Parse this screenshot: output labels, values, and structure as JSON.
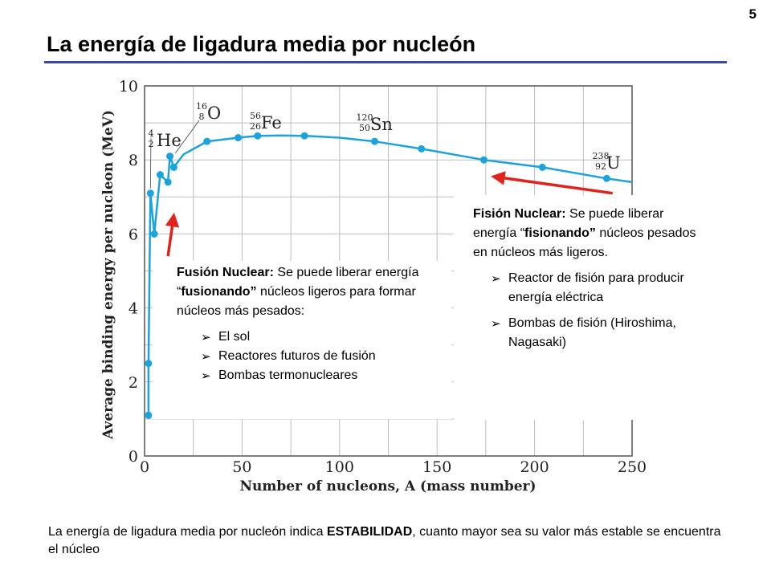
{
  "page_number": "5",
  "title": "La energía de ligadura media por nucleón",
  "fusion_box": {
    "heading": "Fusión Nuclear:",
    "text_1": " Se puede liberar energía “",
    "text_bold": "fusionando”",
    "text_2": " núcleos ligeros para formar núcleos más pesados:",
    "items": [
      "El sol",
      "Reactores futuros de fusión",
      "Bombas termonucleares"
    ]
  },
  "fission_box": {
    "heading": "Fisión Nuclear:",
    "text_1": " Se puede liberar energía “",
    "text_bold": "fisionando”",
    "text_2": " núcleos pesados en núcleos más ligeros.",
    "items": [
      "Reactor de fisión para producir energía eléctrica",
      "Bombas de fisión (Hiroshima, Nagasaki)"
    ]
  },
  "caption": {
    "text_1": "La energía de ligadura media por nucleón indica ",
    "bold": "ESTABILIDAD",
    "text_2": ", cuanto mayor sea su valor más estable se encuentra el núcleo"
  },
  "colors": {
    "curve": "#1aa3dc",
    "arrow": "#e0231b",
    "rule": "#3b48a6"
  },
  "chart_data": {
    "type": "line",
    "xlabel": "Number of nucleons, A (mass number)",
    "ylabel": "Average binding energy per nucleon (MeV)",
    "xlim": [
      0,
      250
    ],
    "ylim": [
      0,
      10
    ],
    "xticks": [
      "0",
      "50",
      "100",
      "150",
      "200",
      "250"
    ],
    "yticks": [
      "0",
      "2",
      "4",
      "6",
      "8",
      "10"
    ],
    "grid": true,
    "points": [
      {
        "x": 2,
        "y": 1.1
      },
      {
        "x": 2,
        "y": 2.5
      },
      {
        "x": 3,
        "y": 7.1
      },
      {
        "x": 5,
        "y": 6.0
      },
      {
        "x": 8,
        "y": 7.6
      },
      {
        "x": 12,
        "y": 7.4
      },
      {
        "x": 13,
        "y": 8.1
      },
      {
        "x": 15,
        "y": 7.8
      },
      {
        "x": 32,
        "y": 8.5
      },
      {
        "x": 48,
        "y": 8.6
      },
      {
        "x": 58,
        "y": 8.65
      },
      {
        "x": 82,
        "y": 8.65
      },
      {
        "x": 118,
        "y": 8.5
      },
      {
        "x": 142,
        "y": 8.3
      },
      {
        "x": 174,
        "y": 8.0
      },
      {
        "x": 204,
        "y": 7.8
      },
      {
        "x": 237,
        "y": 7.5
      }
    ],
    "curve": [
      [
        2,
        1.1
      ],
      [
        2,
        2.5
      ],
      [
        3,
        7.1
      ],
      [
        5,
        6.0
      ],
      [
        8,
        7.6
      ],
      [
        12,
        7.4
      ],
      [
        13,
        8.1
      ],
      [
        15,
        7.8
      ],
      [
        20,
        8.15
      ],
      [
        32,
        8.5
      ],
      [
        48,
        8.6
      ],
      [
        58,
        8.65
      ],
      [
        70,
        8.66
      ],
      [
        82,
        8.65
      ],
      [
        100,
        8.6
      ],
      [
        118,
        8.5
      ],
      [
        142,
        8.3
      ],
      [
        174,
        8.0
      ],
      [
        204,
        7.8
      ],
      [
        237,
        7.5
      ],
      [
        250,
        7.4
      ]
    ],
    "annotations": [
      {
        "mass": "4",
        "atomic": "2",
        "symbol": "He",
        "x": 4,
        "y": 7.2
      },
      {
        "mass": "16",
        "atomic": "8",
        "symbol": "O",
        "x": 16,
        "y": 8.1
      },
      {
        "mass": "56",
        "atomic": "26",
        "symbol": "Fe",
        "x": 56,
        "y": 8.8
      },
      {
        "mass": "120",
        "atomic": "50",
        "symbol": "Sn",
        "x": 118,
        "y": 8.5
      },
      {
        "mass": "238",
        "atomic": "92",
        "symbol": "U",
        "x": 237,
        "y": 7.5
      }
    ],
    "arrows": [
      {
        "from": [
          12,
          5.4
        ],
        "to": [
          15,
          6.5
        ]
      },
      {
        "from": [
          240,
          7.1
        ],
        "to": [
          179,
          7.55
        ]
      }
    ]
  }
}
